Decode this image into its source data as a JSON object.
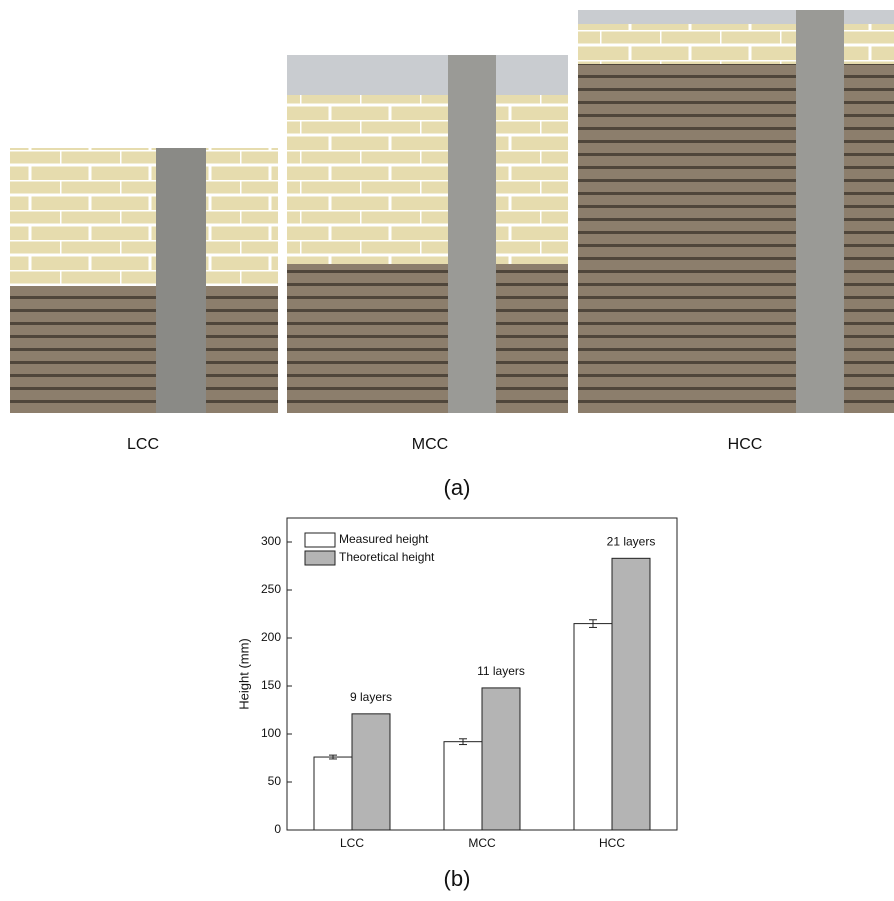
{
  "figure": {
    "photo_labels": [
      "LCC",
      "MCC",
      "HCC"
    ],
    "panel_a": "(a)",
    "panel_b": "(b)"
  },
  "chart_data": {
    "type": "bar",
    "y_label": "Height (mm)",
    "categories": [
      "LCC",
      "MCC",
      "HCC"
    ],
    "series": [
      {
        "name": "Measured height",
        "color": "#ffffff",
        "values": [
          76,
          92,
          215
        ],
        "errors": [
          2,
          3,
          4
        ]
      },
      {
        "name": "Theoretical height",
        "color": "#b4b4b4",
        "values": [
          121,
          148,
          283
        ]
      }
    ],
    "annotations": [
      "9 layers",
      "11 layers",
      "21 layers"
    ],
    "ylim": [
      0,
      325
    ],
    "yticks": [
      0,
      50,
      100,
      150,
      200,
      250,
      300
    ],
    "legend": "upper left"
  }
}
